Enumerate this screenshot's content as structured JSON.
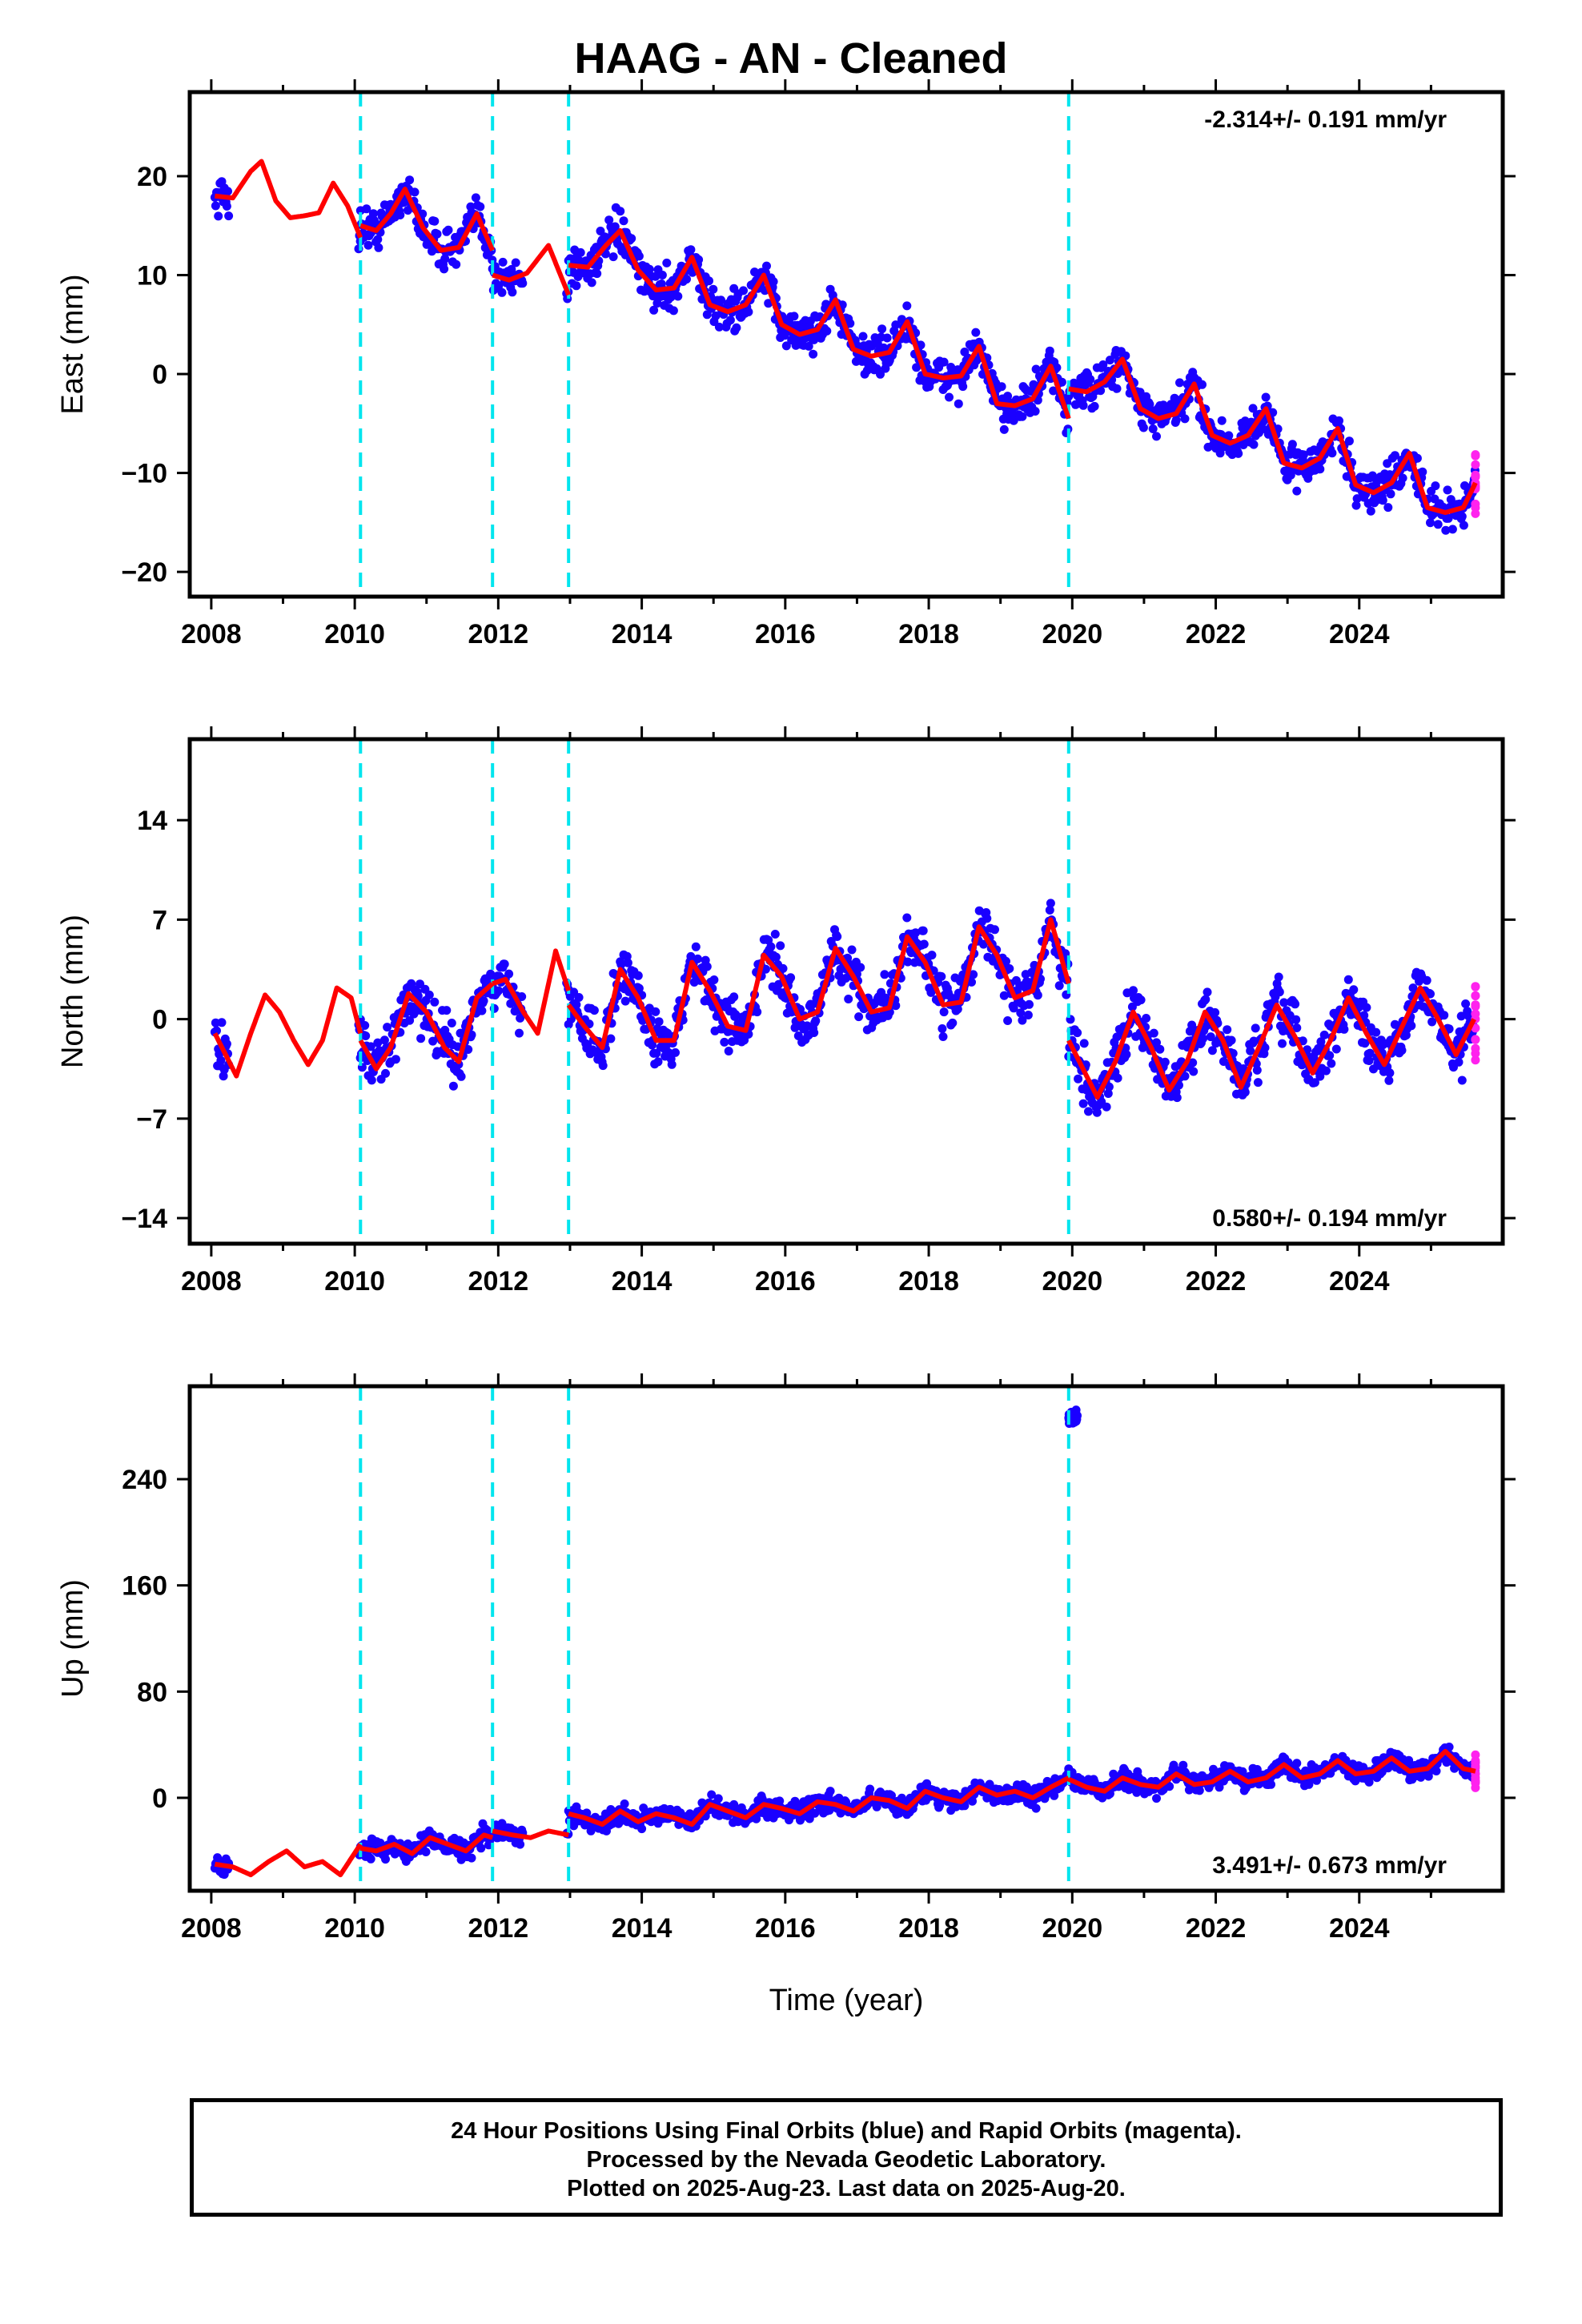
{
  "title": "HAAG  - AN - Cleaned",
  "colors": {
    "final": "#1a00ff",
    "rapid": "#ff22ee",
    "model": "#ff0000",
    "steps": "#00e5ee",
    "frame": "#000000"
  },
  "x_axis_label": "Time (year)",
  "x_tick_labels": [
    "2008",
    "2010",
    "2012",
    "2014",
    "2016",
    "2018",
    "2020",
    "2022",
    "2024"
  ],
  "footer": {
    "line1": "24 Hour Positions Using Final Orbits (blue) and Rapid Orbits (magenta).",
    "line2": "Processed by the Nevada Geodetic Laboratory.",
    "line3": "Plotted on 2025-Aug-23. Last data on 2025-Aug-20."
  },
  "chart_data": [
    {
      "type": "scatter",
      "id": "east",
      "ylabel": "East (mm)",
      "rate_label": "-2.314+/- 0.191 mm/yr",
      "rate_position": "top-right",
      "xlim": [
        2007.7,
        2026.0
      ],
      "ylim": [
        -22.5,
        28.5
      ],
      "y_ticks": [
        -20,
        -10,
        0,
        10,
        20
      ],
      "y_tick_labels": [
        "−20",
        "−10",
        "0",
        "10",
        "20"
      ],
      "step_epochs": [
        2010.08,
        2011.92,
        2012.98,
        2019.95
      ],
      "model_segments": [
        {
          "x": [
            2008.05,
            2008.3,
            2008.55,
            2008.7,
            2008.9,
            2009.1,
            2009.3,
            2009.5,
            2009.7,
            2009.9,
            2010.08
          ],
          "y": [
            18,
            17.8,
            20.5,
            21.5,
            17.5,
            15.8,
            16,
            16.3,
            19.3,
            17,
            13.8
          ]
        },
        {
          "x": [
            2010.08,
            2010.3,
            2010.5,
            2010.7,
            2010.95,
            2011.2,
            2011.45,
            2011.7,
            2011.92
          ],
          "y": [
            15,
            14.5,
            16.2,
            18.7,
            14.8,
            12.5,
            12.8,
            16.2,
            12.5
          ]
        },
        {
          "x": [
            2011.92,
            2012.15,
            2012.4,
            2012.7,
            2012.98
          ],
          "y": [
            10,
            9.5,
            10.2,
            13,
            8
          ]
        },
        {
          "x": [
            2012.98,
            2013.25,
            2013.5,
            2013.7,
            2013.95,
            2014.2,
            2014.45,
            2014.7,
            2014.95,
            2015.2,
            2015.45,
            2015.7,
            2015.95,
            2016.2,
            2016.45,
            2016.7,
            2016.95,
            2017.2,
            2017.45,
            2017.7,
            2017.95,
            2018.2,
            2018.45,
            2018.7,
            2018.95,
            2019.2,
            2019.45,
            2019.7,
            2019.95
          ],
          "y": [
            11,
            10.8,
            13,
            14.5,
            10.5,
            8.5,
            8.7,
            11.8,
            7,
            6.3,
            7,
            10,
            5,
            4,
            4.5,
            7.5,
            2.5,
            1.8,
            2.2,
            5.3,
            0,
            -0.4,
            -0.2,
            2.8,
            -3,
            -3.2,
            -2.5,
            0.8,
            -4.5
          ]
        },
        {
          "x": [
            2019.95,
            2020.2,
            2020.45,
            2020.7,
            2020.95,
            2021.2,
            2021.45,
            2021.7,
            2021.95,
            2022.2,
            2022.45,
            2022.7,
            2022.95,
            2023.2,
            2023.45,
            2023.7,
            2023.95,
            2024.2,
            2024.45,
            2024.7,
            2024.95,
            2025.2,
            2025.45,
            2025.62
          ],
          "y": [
            -1.5,
            -1.8,
            -0.8,
            1.5,
            -3.5,
            -4.5,
            -4,
            -1,
            -6.2,
            -7,
            -6.2,
            -3.5,
            -9,
            -9.5,
            -8.5,
            -5.5,
            -11.2,
            -12,
            -11,
            -8,
            -13.5,
            -14,
            -13.5,
            -11
          ]
        }
      ]
    },
    {
      "type": "scatter",
      "id": "north",
      "ylabel": "North (mm)",
      "rate_label": "0.580+/- 0.194 mm/yr",
      "rate_position": "bottom-right",
      "xlim": [
        2007.7,
        2026.0
      ],
      "ylim": [
        -15.8,
        19.7
      ],
      "y_ticks": [
        -14,
        -7,
        0,
        7,
        14
      ],
      "y_tick_labels": [
        "−14",
        "−7",
        "0",
        "7",
        "14"
      ],
      "step_epochs": [
        2010.08,
        2011.92,
        2012.98,
        2019.95
      ],
      "model_segments": [
        {
          "x": [
            2008.05,
            2008.2,
            2008.35,
            2008.55,
            2008.75,
            2008.95,
            2009.15,
            2009.35,
            2009.55,
            2009.75,
            2009.95,
            2010.08
          ],
          "y": [
            -1,
            -2.5,
            -4,
            -1,
            1.7,
            0.5,
            -1.5,
            -3.2,
            -1.5,
            2.2,
            1.5,
            -1
          ]
        },
        {
          "x": [
            2010.08,
            2010.3,
            2010.5,
            2010.75,
            2011.0,
            2011.25,
            2011.45,
            2011.7,
            2011.92
          ],
          "y": [
            -1.5,
            -3.5,
            -2,
            1.8,
            0.5,
            -2,
            -3,
            1.5,
            2.5
          ]
        },
        {
          "x": [
            2011.92,
            2012.1,
            2012.35,
            2012.55,
            2012.8,
            2012.98
          ],
          "y": [
            2.5,
            2.8,
            0.5,
            -1,
            4.8,
            2
          ]
        },
        {
          "x": [
            2012.98,
            2013.2,
            2013.45,
            2013.7,
            2013.95,
            2014.2,
            2014.45,
            2014.7,
            2014.95,
            2015.2,
            2015.45,
            2015.7,
            2015.95,
            2016.2,
            2016.45,
            2016.7,
            2016.95,
            2017.2,
            2017.45,
            2017.7,
            2017.95,
            2018.2,
            2018.45,
            2018.7,
            2018.95,
            2019.2,
            2019.45,
            2019.7,
            2019.95
          ],
          "y": [
            1,
            -0.5,
            -2,
            3.5,
            1.5,
            -1.5,
            -1.5,
            4,
            2,
            -0.5,
            -0.8,
            4.5,
            3,
            0,
            0.5,
            5,
            3,
            0.5,
            0.8,
            5.8,
            4,
            1,
            1.2,
            6.5,
            4.5,
            1.5,
            2,
            7,
            2.5
          ]
        },
        {
          "x": [
            2019.95,
            2020.1,
            2020.35,
            2020.6,
            2020.85,
            2021.1,
            2021.35,
            2021.6,
            2021.85,
            2022.1,
            2022.35,
            2022.6,
            2022.85,
            2023.1,
            2023.35,
            2023.6,
            2023.85,
            2024.1,
            2024.35,
            2024.6,
            2024.85,
            2025.1,
            2025.35,
            2025.6
          ],
          "y": [
            -1.5,
            -3,
            -5.5,
            -3,
            0.5,
            -2,
            -5,
            -3,
            0.5,
            -1.5,
            -4.8,
            -2,
            1,
            -1.2,
            -3.8,
            -1.5,
            1.5,
            -1,
            -3.2,
            -0.5,
            2.2,
            0,
            -2.5,
            0
          ]
        }
      ]
    },
    {
      "type": "scatter",
      "id": "up",
      "ylabel": "Up (mm)",
      "rate_label": "3.491+/- 0.673 mm/yr",
      "rate_position": "bottom-right",
      "xlim": [
        2007.7,
        2026.0
      ],
      "ylim": [
        -70,
        310
      ],
      "y_ticks": [
        0,
        80,
        160,
        240
      ],
      "y_tick_labels": [
        "0",
        "80",
        "160",
        "240"
      ],
      "step_epochs": [
        2010.08,
        2011.92,
        2012.98,
        2019.95
      ],
      "model_segments": [
        {
          "x": [
            2008.05,
            2008.3,
            2008.55,
            2008.8,
            2009.05,
            2009.3,
            2009.55,
            2009.8,
            2010.08
          ],
          "y": [
            -50,
            -52,
            -58,
            -48,
            -40,
            -52,
            -48,
            -58,
            -35
          ]
        },
        {
          "x": [
            2010.08,
            2010.3,
            2010.55,
            2010.8,
            2011.05,
            2011.3,
            2011.55,
            2011.8,
            2011.92
          ],
          "y": [
            -38,
            -40,
            -35,
            -42,
            -30,
            -35,
            -40,
            -28,
            -30
          ]
        },
        {
          "x": [
            2011.92,
            2012.2,
            2012.45,
            2012.7,
            2012.98
          ],
          "y": [
            -25,
            -28,
            -30,
            -25,
            -28
          ]
        },
        {
          "x": [
            2012.98,
            2013.2,
            2013.45,
            2013.7,
            2013.95,
            2014.2,
            2014.45,
            2014.7,
            2014.95,
            2015.2,
            2015.45,
            2015.7,
            2015.95,
            2016.2,
            2016.45,
            2016.7,
            2016.95,
            2017.2,
            2017.45,
            2017.7,
            2017.95,
            2018.2,
            2018.45,
            2018.7,
            2018.95,
            2019.2,
            2019.45,
            2019.7,
            2019.95
          ],
          "y": [
            -12,
            -15,
            -20,
            -10,
            -18,
            -12,
            -15,
            -20,
            -5,
            -10,
            -15,
            -5,
            -8,
            -12,
            -3,
            -5,
            -10,
            0,
            -2,
            -8,
            5,
            0,
            -3,
            8,
            2,
            5,
            0,
            8,
            15
          ]
        },
        {
          "x": [
            2019.95,
            2020.2,
            2020.45,
            2020.7,
            2020.95,
            2021.2,
            2021.45,
            2021.7,
            2021.95,
            2022.2,
            2022.45,
            2022.7,
            2022.95,
            2023.2,
            2023.45,
            2023.7,
            2023.95,
            2024.2,
            2024.45,
            2024.7,
            2024.95,
            2025.2,
            2025.45,
            2025.62
          ],
          "y": [
            14,
            8,
            5,
            15,
            10,
            8,
            18,
            10,
            12,
            20,
            12,
            15,
            25,
            15,
            18,
            28,
            18,
            20,
            30,
            20,
            22,
            35,
            22,
            20
          ]
        }
      ]
    }
  ]
}
